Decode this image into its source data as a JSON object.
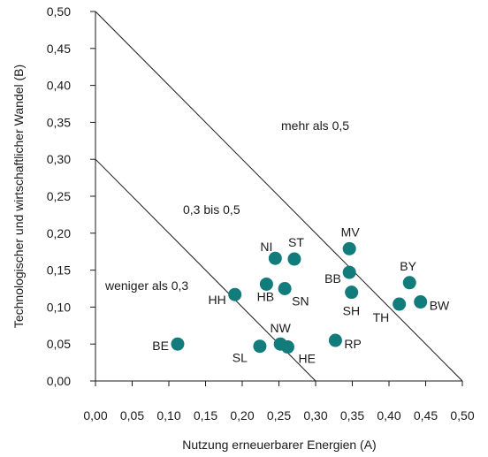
{
  "chart_data": {
    "type": "scatter",
    "title": "",
    "xlabel": "Nutzung erneuerbarer Energien (A)",
    "ylabel": "Technologischer und wirtschaftlicher Wandel (B)",
    "xlim": [
      0,
      0.5
    ],
    "ylim": [
      0,
      0.5
    ],
    "grid": false,
    "x_ticks": [
      "0,00",
      "0,05",
      "0,10",
      "0,15",
      "0,20",
      "0,25",
      "0,30",
      "0,35",
      "0,40",
      "0,45",
      "0,50"
    ],
    "y_ticks": [
      "0,00",
      "0,05",
      "0,10",
      "0,15",
      "0,20",
      "0,25",
      "0,30",
      "0,35",
      "0,40",
      "0,45",
      "0,50"
    ],
    "point_color": "#127b7b",
    "points": [
      {
        "label": "BE",
        "x": 0.112,
        "y": 0.05
      },
      {
        "label": "HH",
        "x": 0.19,
        "y": 0.117
      },
      {
        "label": "SL",
        "x": 0.224,
        "y": 0.047
      },
      {
        "label": "HB",
        "x": 0.233,
        "y": 0.131
      },
      {
        "label": "NI",
        "x": 0.245,
        "y": 0.166
      },
      {
        "label": "NW",
        "x": 0.252,
        "y": 0.05
      },
      {
        "label": "SN",
        "x": 0.258,
        "y": 0.125
      },
      {
        "label": "HE",
        "x": 0.262,
        "y": 0.046
      },
      {
        "label": "ST",
        "x": 0.271,
        "y": 0.165
      },
      {
        "label": "RP",
        "x": 0.327,
        "y": 0.055
      },
      {
        "label": "MV",
        "x": 0.346,
        "y": 0.179
      },
      {
        "label": "BB",
        "x": 0.346,
        "y": 0.147
      },
      {
        "label": "SH",
        "x": 0.349,
        "y": 0.12
      },
      {
        "label": "TH",
        "x": 0.414,
        "y": 0.104
      },
      {
        "label": "BY",
        "x": 0.428,
        "y": 0.133
      },
      {
        "label": "BW",
        "x": 0.443,
        "y": 0.107
      }
    ],
    "reference_lines": [
      {
        "from": [
          0,
          0.3
        ],
        "to": [
          0.3,
          0
        ]
      },
      {
        "from": [
          0,
          0.5
        ],
        "to": [
          0.5,
          0
        ]
      }
    ],
    "regions": [
      {
        "label": "weniger als 0,3"
      },
      {
        "label": "0,3 bis 0,5"
      },
      {
        "label": "mehr als 0,5"
      }
    ]
  }
}
